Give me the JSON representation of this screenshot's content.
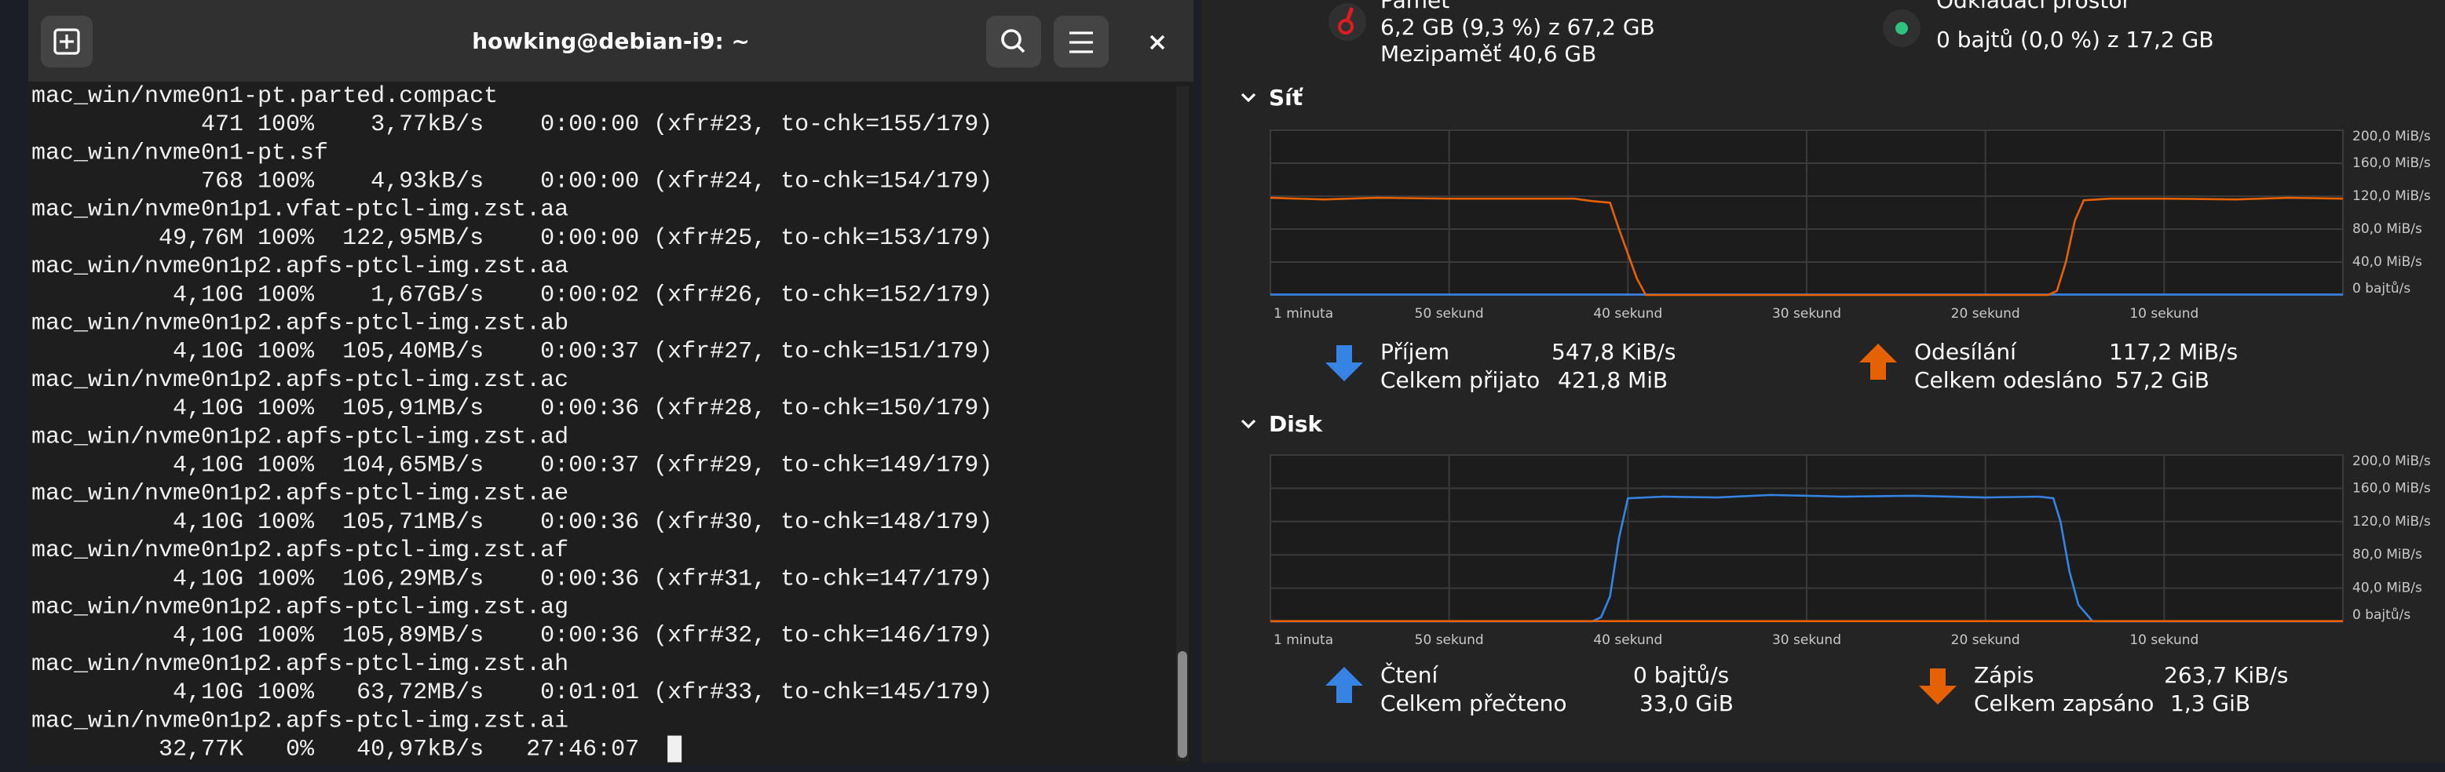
{
  "terminal": {
    "title": "howking@debian-i9: ~",
    "lines": [
      "mac_win/nvme0n1-pt.parted.compact",
      "            471 100%    3,77kB/s    0:00:00 (xfr#23, to-chk=155/179)",
      "mac_win/nvme0n1-pt.sf",
      "            768 100%    4,93kB/s    0:00:00 (xfr#24, to-chk=154/179)",
      "mac_win/nvme0n1p1.vfat-ptcl-img.zst.aa",
      "         49,76M 100%  122,95MB/s    0:00:00 (xfr#25, to-chk=153/179)",
      "mac_win/nvme0n1p2.apfs-ptcl-img.zst.aa",
      "          4,10G 100%    1,67GB/s    0:00:02 (xfr#26, to-chk=152/179)",
      "mac_win/nvme0n1p2.apfs-ptcl-img.zst.ab",
      "          4,10G 100%  105,40MB/s    0:00:37 (xfr#27, to-chk=151/179)",
      "mac_win/nvme0n1p2.apfs-ptcl-img.zst.ac",
      "          4,10G 100%  105,91MB/s    0:00:36 (xfr#28, to-chk=150/179)",
      "mac_win/nvme0n1p2.apfs-ptcl-img.zst.ad",
      "          4,10G 100%  104,65MB/s    0:00:37 (xfr#29, to-chk=149/179)",
      "mac_win/nvme0n1p2.apfs-ptcl-img.zst.ae",
      "          4,10G 100%  105,71MB/s    0:00:36 (xfr#30, to-chk=148/179)",
      "mac_win/nvme0n1p2.apfs-ptcl-img.zst.af",
      "          4,10G 100%  106,29MB/s    0:00:36 (xfr#31, to-chk=147/179)",
      "mac_win/nvme0n1p2.apfs-ptcl-img.zst.ag",
      "          4,10G 100%  105,89MB/s    0:00:36 (xfr#32, to-chk=146/179)",
      "mac_win/nvme0n1p2.apfs-ptcl-img.zst.ah",
      "          4,10G 100%   63,72MB/s    0:01:01 (xfr#33, to-chk=145/179)",
      "mac_win/nvme0n1p2.apfs-ptcl-img.zst.ai",
      "         32,77K   0%   40,97kB/s   27:46:07"
    ]
  },
  "monitor": {
    "memory": {
      "label": "Paměť",
      "usage": "6,2 GB (9,3 %) z 67,2 GB",
      "cache": "Mezipaměť 40,6 GB"
    },
    "swap": {
      "label": "Odkládací prostor",
      "usage": "0 bajtů (0,0 %) z 17,2 GB"
    }
  },
  "chart_data": [
    {
      "type": "line",
      "title": "Síť",
      "x": [
        60,
        57,
        54,
        50,
        46,
        43,
        42,
        41,
        40.5,
        40,
        39.5,
        39,
        30,
        20,
        16.5,
        16,
        15.5,
        15,
        14.5,
        13,
        10,
        6,
        3,
        0
      ],
      "xlim": [
        60,
        0
      ],
      "xticks": [
        {
          "value": 60,
          "label": "1 minuta"
        },
        {
          "value": 50,
          "label": "50 sekund"
        },
        {
          "value": 40,
          "label": "40 sekund"
        },
        {
          "value": 30,
          "label": "30 sekund"
        },
        {
          "value": 20,
          "label": "20 sekund"
        },
        {
          "value": 10,
          "label": "10 sekund"
        }
      ],
      "ylim": [
        0,
        200
      ],
      "yticks": [
        {
          "value": 200,
          "label": "200,0 MiB/s"
        },
        {
          "value": 160,
          "label": "160,0 MiB/s"
        },
        {
          "value": 120,
          "label": "120,0 MiB/s"
        },
        {
          "value": 80,
          "label": "80,0 MiB/s"
        },
        {
          "value": 40,
          "label": "40,0 MiB/s"
        },
        {
          "value": 0,
          "label": "0 bajtů/s"
        }
      ],
      "grid": true,
      "series": [
        {
          "name": "Příjem",
          "color": "#3584e4",
          "arrow": "down",
          "rate": "547,8 KiB/s",
          "total_name": "Celkem přijato",
          "total": "421,8 MiB",
          "values": [
            0.5,
            0.5,
            0.5,
            0.5,
            0.5,
            0.5,
            0.5,
            0.5,
            0.5,
            0.5,
            0.5,
            0.5,
            0.5,
            0.5,
            0.5,
            0.5,
            0.5,
            0.5,
            0.5,
            0.5,
            0.5,
            0.5,
            0.5,
            0.5
          ]
        },
        {
          "name": "Odesílání",
          "color": "#e66100",
          "arrow": "up",
          "rate": "117,2 MiB/s",
          "total_name": "Celkem odesláno",
          "total": "57,2 GiB",
          "values": [
            118,
            116,
            118,
            117,
            117,
            117,
            114,
            112,
            80,
            50,
            20,
            0,
            0,
            0,
            0,
            5,
            40,
            90,
            115,
            117,
            117,
            116,
            118,
            117
          ]
        }
      ]
    },
    {
      "type": "line",
      "title": "Disk",
      "x": [
        60,
        50,
        42,
        41.5,
        41,
        40.5,
        40,
        38,
        35,
        32,
        28,
        24,
        20,
        17,
        16.2,
        15.8,
        15.3,
        14.8,
        14,
        12,
        6,
        0
      ],
      "xlim": [
        60,
        0
      ],
      "xticks": [
        {
          "value": 60,
          "label": "1 minuta"
        },
        {
          "value": 50,
          "label": "50 sekund"
        },
        {
          "value": 40,
          "label": "40 sekund"
        },
        {
          "value": 30,
          "label": "30 sekund"
        },
        {
          "value": 20,
          "label": "20 sekund"
        },
        {
          "value": 10,
          "label": "10 sekund"
        }
      ],
      "ylim": [
        0,
        200
      ],
      "yticks": [
        {
          "value": 200,
          "label": "200,0 MiB/s"
        },
        {
          "value": 160,
          "label": "160,0 MiB/s"
        },
        {
          "value": 120,
          "label": "120,0 MiB/s"
        },
        {
          "value": 80,
          "label": "80,0 MiB/s"
        },
        {
          "value": 40,
          "label": "40,0 MiB/s"
        },
        {
          "value": 0,
          "label": "0 bajtů/s"
        }
      ],
      "grid": true,
      "series": [
        {
          "name": "Čtení",
          "color": "#3584e4",
          "arrow": "up",
          "rate": "0 bajtů/s",
          "total_name": "Celkem přečteno",
          "total": "33,0 GiB",
          "values": [
            0,
            0,
            0,
            5,
            30,
            100,
            148,
            150,
            149,
            152,
            150,
            151,
            149,
            150,
            148,
            120,
            60,
            20,
            0,
            0,
            0,
            0
          ]
        },
        {
          "name": "Zápis",
          "color": "#e66100",
          "arrow": "down",
          "rate": "263,7 KiB/s",
          "total_name": "Celkem zapsáno",
          "total": "1,3 GiB",
          "values": [
            0.3,
            0.3,
            0.3,
            0.3,
            0.3,
            0.3,
            0.3,
            0.3,
            0.3,
            0.3,
            0.3,
            0.3,
            0.3,
            0.3,
            0.3,
            0.3,
            0.3,
            0.3,
            0.3,
            0.3,
            0.3,
            0.3
          ]
        }
      ]
    }
  ]
}
